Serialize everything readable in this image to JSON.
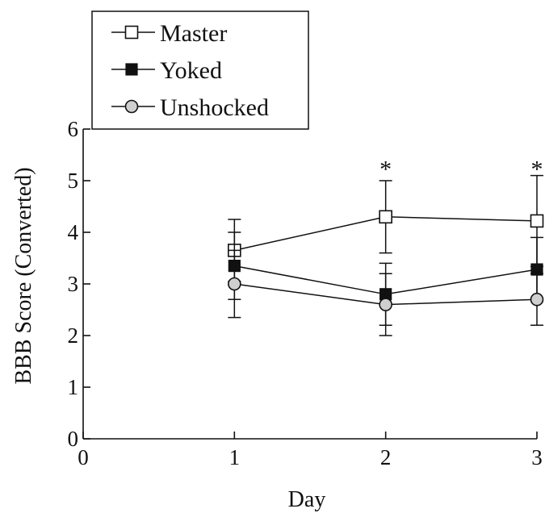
{
  "chart_data": {
    "type": "line",
    "title": "",
    "xlabel": "Day",
    "ylabel": "BBB Score (Converted)",
    "x": [
      1,
      2,
      3
    ],
    "xticks": [
      "0",
      "1",
      "2",
      "3"
    ],
    "yticks": [
      "0",
      "1",
      "2",
      "3",
      "4",
      "5",
      "6"
    ],
    "xlim": [
      0,
      3
    ],
    "ylim": [
      0,
      6
    ],
    "grid": false,
    "legend_position": "top-left",
    "series": [
      {
        "name": "Master",
        "marker": "square-open",
        "values": [
          3.65,
          4.3,
          4.22
        ],
        "errors": [
          0.6,
          0.7,
          0.88
        ]
      },
      {
        "name": "Yoked",
        "marker": "square-filled",
        "values": [
          3.35,
          2.8,
          3.28
        ],
        "errors": [
          0.65,
          0.6,
          0.62
        ]
      },
      {
        "name": "Unshocked",
        "marker": "circle-open",
        "values": [
          3.0,
          2.6,
          2.7
        ],
        "errors": [
          0.65,
          0.6,
          0.5
        ]
      }
    ],
    "annotations": [
      {
        "text": "*",
        "x": 2,
        "y": 5.35
      },
      {
        "text": "*",
        "x": 3,
        "y": 5.35
      }
    ]
  },
  "colors": {
    "axis": "#111111",
    "open_fill": "#ffffff",
    "circle_fill": "#cfcfcf",
    "filled_marker": "#111111"
  }
}
